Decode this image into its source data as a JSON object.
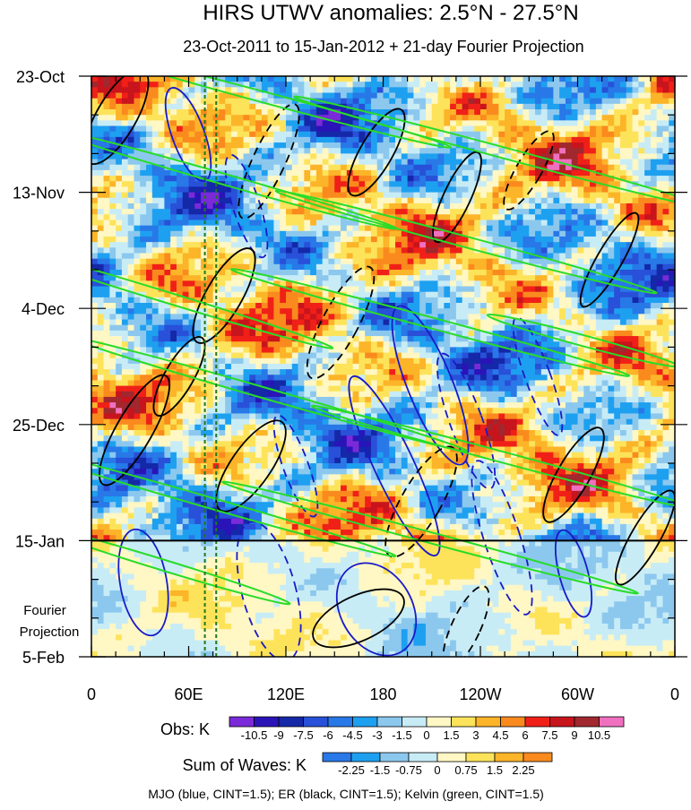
{
  "chart_data": {
    "type": "heatmap",
    "title": "HIRS UTWV anomalies: 2.5°N - 27.5°N",
    "subtitle": "23-Oct-2011 to 15-Jan-2012 + 21-day Fourier Projection",
    "x_tick_labels": [
      "0",
      "60E",
      "120E",
      "180",
      "120W",
      "60W",
      "0"
    ],
    "x_range_deg_east": [
      0,
      360
    ],
    "y_tick_labels": [
      "23-Oct",
      "13-Nov",
      "4-Dec",
      "25-Dec",
      "15-Jan",
      "5-Feb"
    ],
    "y_range_days": [
      0,
      105
    ],
    "observation_end_day": 84,
    "projection_label_lines": [
      "Fourier",
      "Projection"
    ],
    "reference_longitudes_deg_east": [
      70,
      77
    ],
    "obs_colorbar": {
      "label": "Obs: K",
      "tick_labels": [
        "-10.5",
        "-9",
        "-7.5",
        "-6",
        "-4.5",
        "-3",
        "-1.5",
        "0",
        "1.5",
        "3",
        "4.5",
        "6",
        "7.5",
        "9",
        "10.5"
      ],
      "colors": [
        "#7a2ad8",
        "#2a14b8",
        "#1428a8",
        "#2850d8",
        "#2878e8",
        "#1ea0f0",
        "#8cc8ee",
        "#c8ecf6",
        "#fff7c4",
        "#fde35a",
        "#fcb428",
        "#fa8a1e",
        "#f02018",
        "#c8141c",
        "#a0282e",
        "#f070c0"
      ]
    },
    "waves_colorbar": {
      "label": "Sum of Waves: K",
      "tick_labels": [
        "-2.25",
        "-1.5",
        "-0.75",
        "0",
        "0.75",
        "1.5",
        "2.25"
      ],
      "colors": [
        "#2878e8",
        "#1ea0f0",
        "#8cc8ee",
        "#c8ecf6",
        "#fff7c4",
        "#fde35a",
        "#fcb428",
        "#fa8a1e"
      ]
    },
    "contour_legend": "MJO (blue, CINT=1.5); ER (black, CINT=1.5); Kelvin (green, CINT=1.5)",
    "series_colors": {
      "mjo": "#1a1ac8",
      "er": "#000000",
      "kelvin": "#28dc28",
      "reference_line": "#207820"
    }
  }
}
